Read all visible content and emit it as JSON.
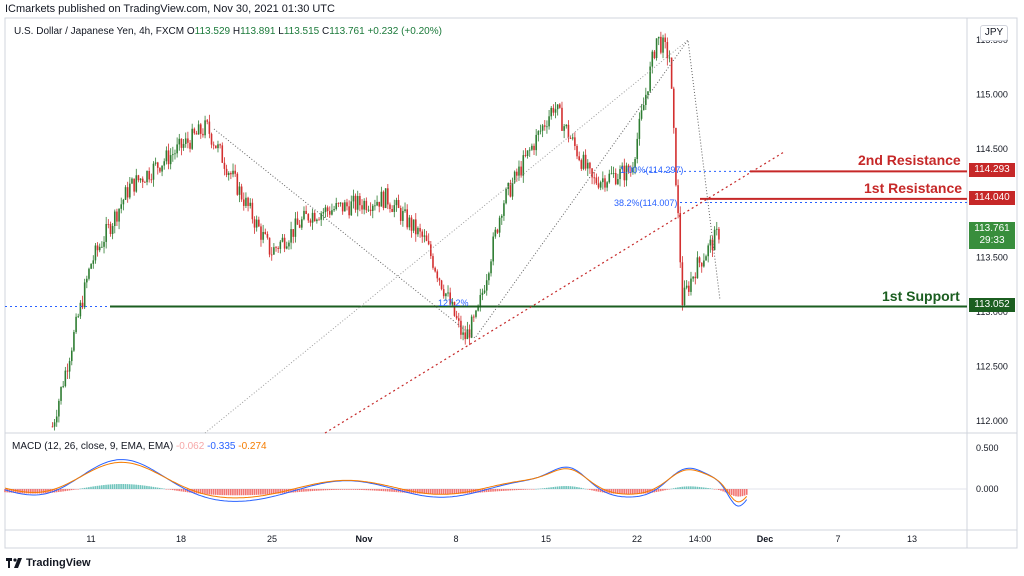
{
  "publisher": "ICmarkets published on TradingView.com, Nov 30, 2021 01:30 UTC",
  "symbol": {
    "name": "U.S. Dollar / Japanese Yen, 4h, FXCM",
    "open_label": "O",
    "open": "113.529",
    "high_label": "H",
    "high": "113.891",
    "low_label": "L",
    "low": "113.515",
    "close_label": "C",
    "close": "113.761",
    "change": "+0.232 (+0.20%)",
    "currency": "JPY"
  },
  "levels": {
    "resistance2": {
      "label": "2nd Resistance",
      "price": "114.293",
      "color": "#c62828"
    },
    "resistance1": {
      "label": "1st Resistance",
      "price": "114.040",
      "color": "#c62828"
    },
    "support1": {
      "label": "1st Support",
      "price": "113.052",
      "color": "#1b5e20"
    }
  },
  "current_price": {
    "price": "113.761",
    "countdown": "29:33",
    "color": "#388e3c"
  },
  "fib_labels": {
    "f100": "1.00%(114.297)",
    "f38": "38.2%(114.007)",
    "f127": "127.2%"
  },
  "macd": {
    "label": "MACD (12, 26, close, 9, EMA, EMA)",
    "v1": "-0.062",
    "v2": "-0.335",
    "v3": "-0.274"
  },
  "brand": "TradingView",
  "chart_data": {
    "type": "candlestick",
    "title": "U.S. Dollar / Japanese Yen, 4h, FXCM",
    "y_axis_ticks": [
      "115.500",
      "115.000",
      "114.500",
      "113.500",
      "113.000",
      "112.500",
      "112.000"
    ],
    "x_axis_ticks": [
      "11",
      "18",
      "25",
      "Nov",
      "8",
      "15",
      "22",
      "14:00",
      "Dec",
      "7",
      "13"
    ],
    "macd_axis_ticks": [
      "0.500",
      "0.000"
    ],
    "ylim": [
      111.95,
      115.55
    ],
    "key_points": [
      {
        "x": "Oct 8",
        "y": 111.95
      },
      {
        "x": "Oct 11",
        "y": 113.45
      },
      {
        "x": "Oct 14",
        "y": 114.15
      },
      {
        "x": "Oct 20",
        "y": 114.7
      },
      {
        "x": "Oct 25",
        "y": 113.55
      },
      {
        "x": "Oct 28",
        "y": 113.9
      },
      {
        "x": "Nov 3",
        "y": 114.05
      },
      {
        "x": "Nov 6",
        "y": 113.65
      },
      {
        "x": "Nov 9",
        "y": 112.75
      },
      {
        "x": "Nov 10",
        "y": 112.95
      },
      {
        "x": "Nov 12",
        "y": 114.0
      },
      {
        "x": "Nov 16",
        "y": 114.9
      },
      {
        "x": "Nov 19",
        "y": 114.2
      },
      {
        "x": "Nov 22",
        "y": 114.3
      },
      {
        "x": "Nov 24",
        "y": 115.52
      },
      {
        "x": "Nov 25",
        "y": 115.35
      },
      {
        "x": "Nov 26",
        "y": 113.1
      },
      {
        "x": "Nov 27",
        "y": 113.4
      },
      {
        "x": "Nov 29",
        "y": 113.76
      }
    ]
  }
}
